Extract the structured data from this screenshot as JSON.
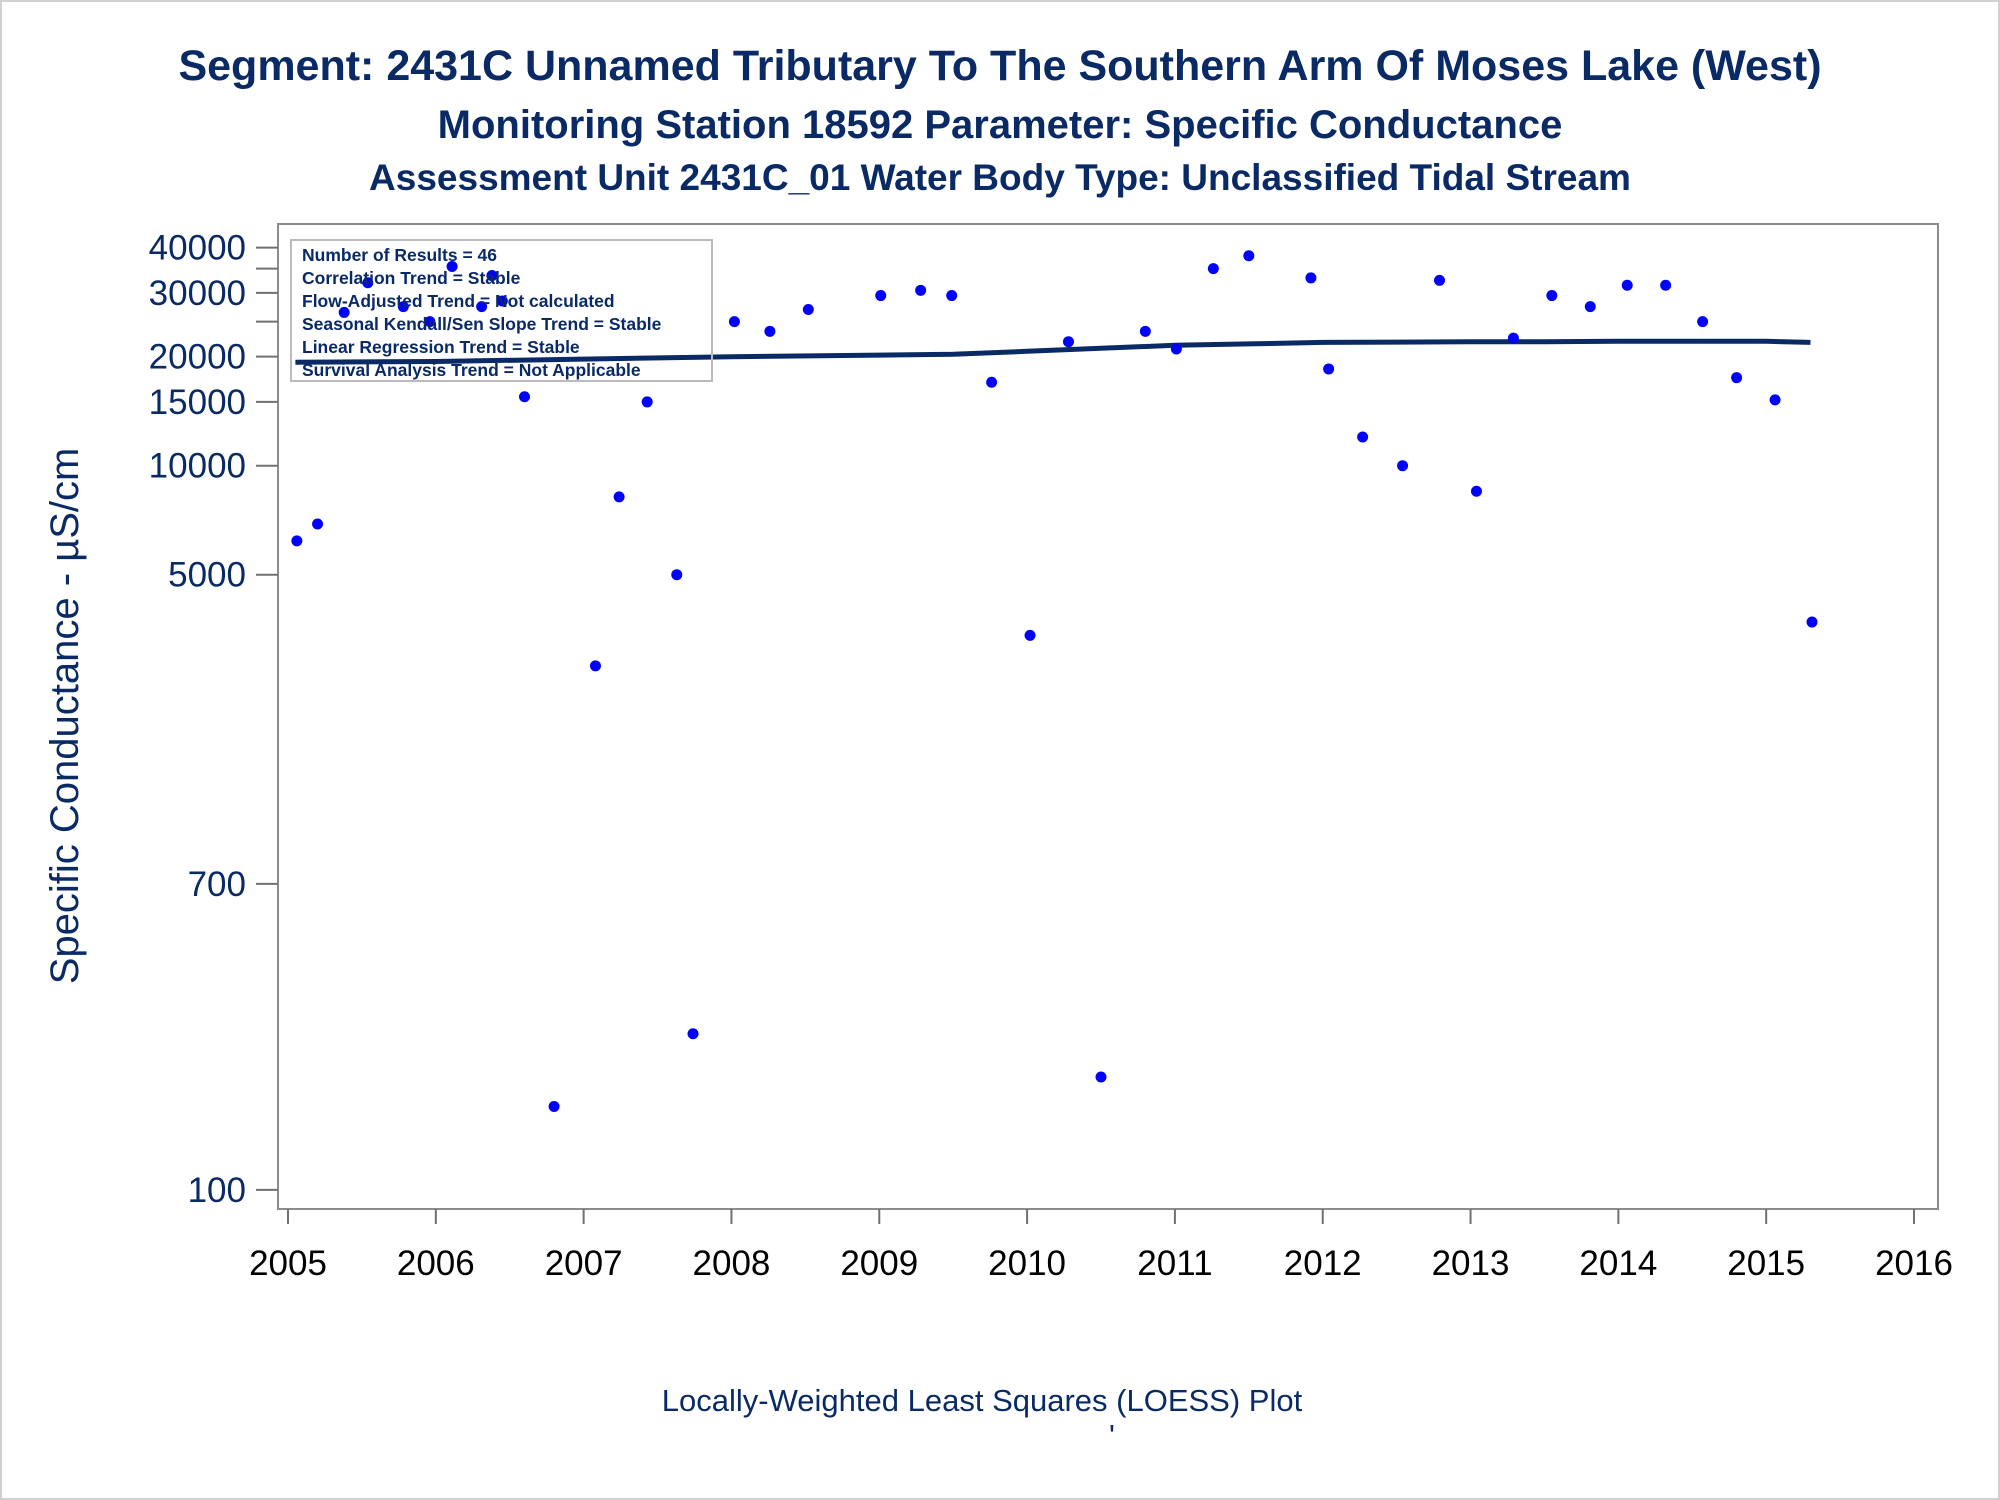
{
  "titles": {
    "line1": "Segment: 2431C  Unnamed Tributary To The Southern Arm Of Moses Lake (West)",
    "line2": "Monitoring Station 18592 Parameter: Specific Conductance",
    "line3": "Assessment Unit 2431C_01   Water Body Type: Unclassified Tidal Stream"
  },
  "footnote": "Locally-Weighted Least Squares (LOESS) Plot",
  "footnote_mark": "'",
  "legend": {
    "lines": [
      "Number of Results = 46",
      "Correlation Trend = Stable",
      "Flow-Adjusted Trend = Not calculated",
      "Seasonal Kendall/Sen Slope Trend = Stable",
      "Linear Regression Trend = Stable",
      "Survival Analysis Trend = Not Applicable"
    ],
    "placement": "top-left"
  },
  "colors": {
    "title": "#0a2a66",
    "points": "#0000ff",
    "loess_line": "#0a2a66",
    "axis": "#8c8c8c"
  },
  "chart_data": {
    "type": "scatter",
    "title": "Segment: 2431C  Unnamed Tributary To The Southern Arm Of Moses Lake (West)",
    "ylabel": "Specific Conductance -  µS/cm",
    "xlabel": "",
    "y_scale": "log",
    "ylim": [
      95,
      42000
    ],
    "xlim": [
      2005,
      2016
    ],
    "y_ticks": [
      100,
      700,
      5000,
      10000,
      15000,
      20000,
      30000,
      40000
    ],
    "y_tick_labels": [
      "100",
      "700",
      "5000",
      "10000",
      "15000",
      "20000",
      "30000",
      "40000"
    ],
    "x_ticks": [
      2005,
      2006,
      2007,
      2008,
      2009,
      2010,
      2011,
      2012,
      2013,
      2014,
      2015,
      2016
    ],
    "x_tick_labels": [
      "2005",
      "2006",
      "2007",
      "2008",
      "2009",
      "2010",
      "2011",
      "2012",
      "2013",
      "2014",
      "2015",
      "2016"
    ],
    "grid": false,
    "series": [
      {
        "kind": "points",
        "x": [
          2005.06,
          2005.2,
          2005.38,
          2005.54,
          2005.78,
          2005.96,
          2006.11,
          2006.31,
          2006.38,
          2006.45,
          2006.6,
          2006.8,
          2007.08,
          2007.24,
          2007.43,
          2007.63,
          2007.74,
          2008.02,
          2008.26,
          2008.52,
          2009.01,
          2009.28,
          2009.49,
          2009.76,
          2010.02,
          2010.28,
          2010.5,
          2010.8,
          2011.01,
          2011.26,
          2011.5,
          2011.92,
          2012.04,
          2012.27,
          2012.54,
          2012.79,
          2013.04,
          2013.29,
          2013.55,
          2013.81,
          2014.06,
          2014.32,
          2014.57,
          2014.8,
          2015.06,
          2015.31
        ],
        "y": [
          6200,
          6900,
          26500,
          32000,
          27500,
          25000,
          35500,
          27500,
          33500,
          28500,
          15500,
          170,
          2800,
          8200,
          15000,
          5000,
          270,
          25000,
          23500,
          27000,
          29500,
          30500,
          29500,
          17000,
          3400,
          22000,
          205,
          23500,
          21000,
          35000,
          38000,
          33000,
          18500,
          12000,
          10000,
          32500,
          8500,
          22500,
          29500,
          27500,
          31500,
          31500,
          25000,
          17500,
          15200,
          3700
        ]
      },
      {
        "kind": "loess_line",
        "x": [
          2005.05,
          2006.0,
          2007.0,
          2008.0,
          2009.0,
          2009.5,
          2010.0,
          2010.5,
          2011.0,
          2011.5,
          2012.0,
          2012.5,
          2013.0,
          2013.5,
          2014.0,
          2014.5,
          2015.0,
          2015.3
        ],
        "y": [
          19300,
          19400,
          19700,
          20000,
          20200,
          20300,
          20700,
          21100,
          21500,
          21700,
          21900,
          21950,
          22000,
          22000,
          22050,
          22050,
          22050,
          21900
        ]
      }
    ]
  }
}
